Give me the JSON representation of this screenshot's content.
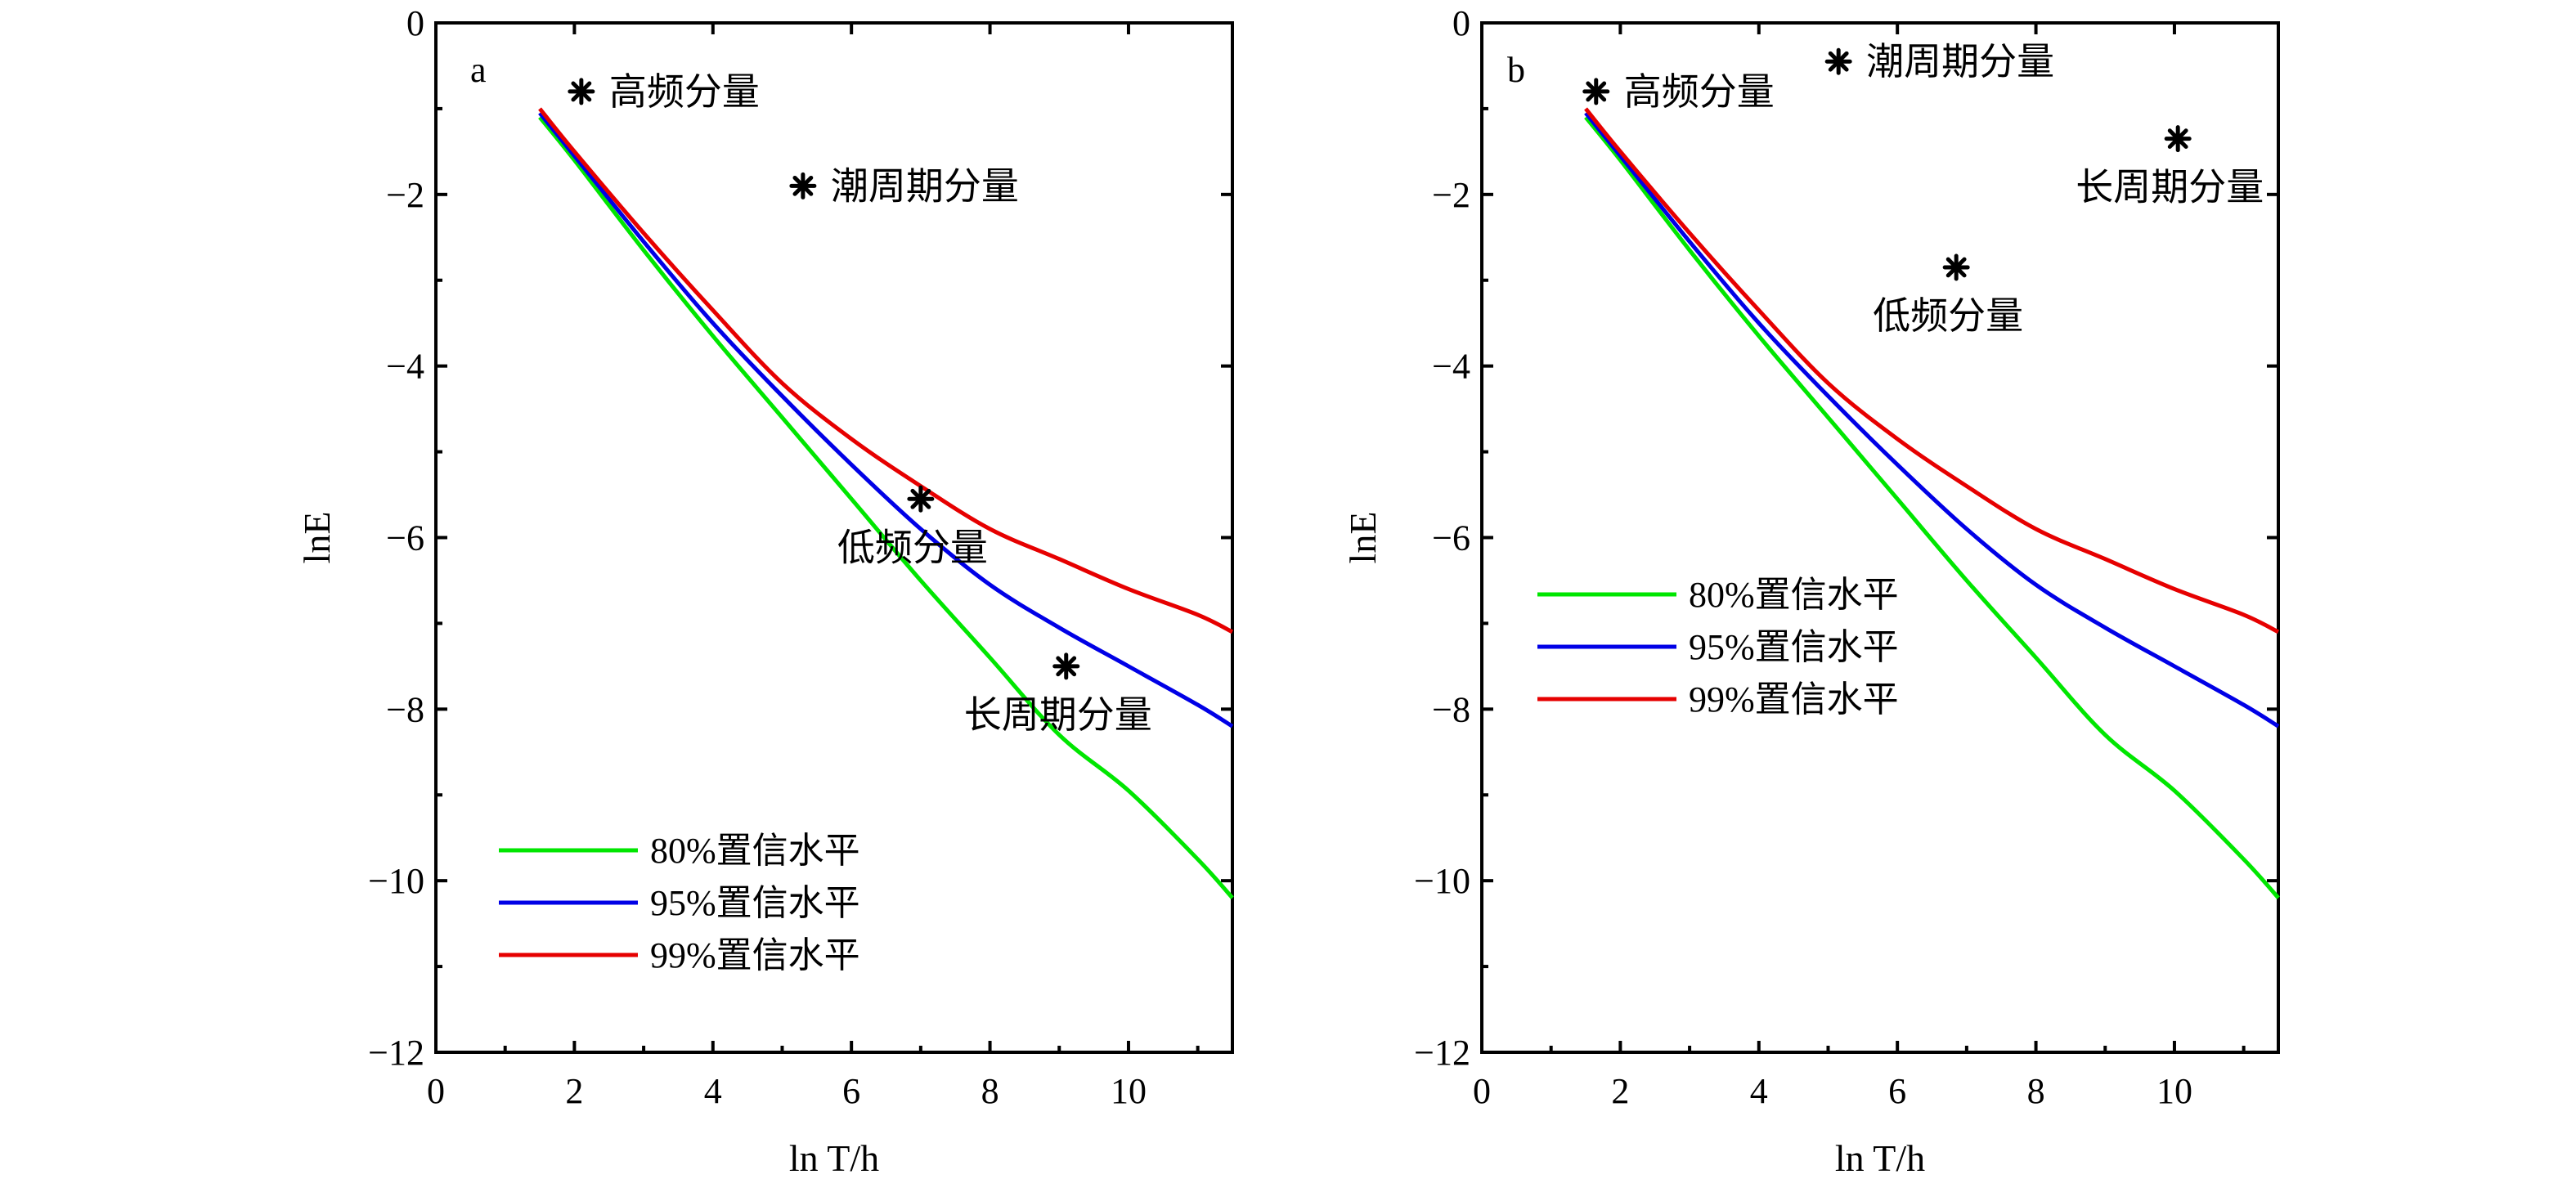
{
  "chart_data": [
    {
      "type": "line",
      "panel_label": "a",
      "xlabel": "ln T/h",
      "ylabel": "lnE",
      "xlim": [
        0,
        11.5
      ],
      "ylim": [
        -12,
        0
      ],
      "xticks": [
        0,
        2,
        4,
        6,
        8,
        10
      ],
      "yticks": [
        0,
        -2,
        -4,
        -6,
        -8,
        -10,
        -12
      ],
      "grid": false,
      "legend_position": "lower-left",
      "series": [
        {
          "name": "80%置信水平",
          "color": "#00e600",
          "x": [
            1.5,
            2,
            3,
            4,
            5,
            6,
            7,
            8,
            9,
            10,
            11,
            11.5
          ],
          "y": [
            -1.1,
            -1.6,
            -2.65,
            -3.65,
            -4.6,
            -5.55,
            -6.5,
            -7.4,
            -8.3,
            -8.95,
            -9.75,
            -10.2
          ]
        },
        {
          "name": "95%置信水平",
          "color": "#0000e6",
          "x": [
            1.5,
            2,
            3,
            4,
            5,
            6,
            7,
            8,
            9,
            10,
            11,
            11.5
          ],
          "y": [
            -1.05,
            -1.55,
            -2.55,
            -3.5,
            -4.35,
            -5.15,
            -5.9,
            -6.55,
            -7.05,
            -7.5,
            -7.95,
            -8.2
          ]
        },
        {
          "name": "99%置信水平",
          "color": "#e60000",
          "x": [
            1.5,
            2,
            3,
            4,
            5,
            6,
            7,
            8,
            9,
            10,
            11,
            11.5
          ],
          "y": [
            -1.0,
            -1.5,
            -2.45,
            -3.35,
            -4.2,
            -4.85,
            -5.4,
            -5.9,
            -6.25,
            -6.6,
            -6.9,
            -7.1
          ]
        }
      ],
      "annotations": [
        {
          "text": "高频分量",
          "x": 2.1,
          "y": -0.8,
          "text_position": "right"
        },
        {
          "text": "潮周期分量",
          "x": 5.3,
          "y": -1.9,
          "text_position": "right"
        },
        {
          "text": "低频分量",
          "x": 7.0,
          "y": -5.55,
          "text_position": "below-left"
        },
        {
          "text": "长周期分量",
          "x": 9.1,
          "y": -7.5,
          "text_position": "below-left"
        }
      ]
    },
    {
      "type": "line",
      "panel_label": "b",
      "xlabel": "ln T/h",
      "ylabel": "lnE",
      "xlim": [
        0,
        11.5
      ],
      "ylim": [
        -12,
        0
      ],
      "xticks": [
        0,
        2,
        4,
        6,
        8,
        10
      ],
      "yticks": [
        0,
        -2,
        -4,
        -6,
        -8,
        -10,
        -12
      ],
      "grid": false,
      "legend_position": "middle-left",
      "series": [
        {
          "name": "80%置信水平",
          "color": "#00e600",
          "x": [
            1.5,
            2,
            3,
            4,
            5,
            6,
            7,
            8,
            9,
            10,
            11,
            11.5
          ],
          "y": [
            -1.1,
            -1.6,
            -2.65,
            -3.65,
            -4.6,
            -5.55,
            -6.5,
            -7.4,
            -8.3,
            -8.95,
            -9.75,
            -10.2
          ]
        },
        {
          "name": "95%置信水平",
          "color": "#0000e6",
          "x": [
            1.5,
            2,
            3,
            4,
            5,
            6,
            7,
            8,
            9,
            10,
            11,
            11.5
          ],
          "y": [
            -1.05,
            -1.55,
            -2.55,
            -3.5,
            -4.35,
            -5.15,
            -5.9,
            -6.55,
            -7.05,
            -7.5,
            -7.95,
            -8.2
          ]
        },
        {
          "name": "99%置信水平",
          "color": "#e60000",
          "x": [
            1.5,
            2,
            3,
            4,
            5,
            6,
            7,
            8,
            9,
            10,
            11,
            11.5
          ],
          "y": [
            -1.0,
            -1.5,
            -2.45,
            -3.35,
            -4.2,
            -4.85,
            -5.4,
            -5.9,
            -6.25,
            -6.6,
            -6.9,
            -7.1
          ]
        }
      ],
      "annotations": [
        {
          "text": "高频分量",
          "x": 1.65,
          "y": -0.8,
          "text_position": "right"
        },
        {
          "text": "潮周期分量",
          "x": 5.15,
          "y": -0.45,
          "text_position": "right"
        },
        {
          "text": "长周期分量",
          "x": 10.05,
          "y": -1.35,
          "text_position": "below-left"
        },
        {
          "text": "低频分量",
          "x": 6.85,
          "y": -2.85,
          "text_position": "below-left"
        }
      ]
    }
  ]
}
